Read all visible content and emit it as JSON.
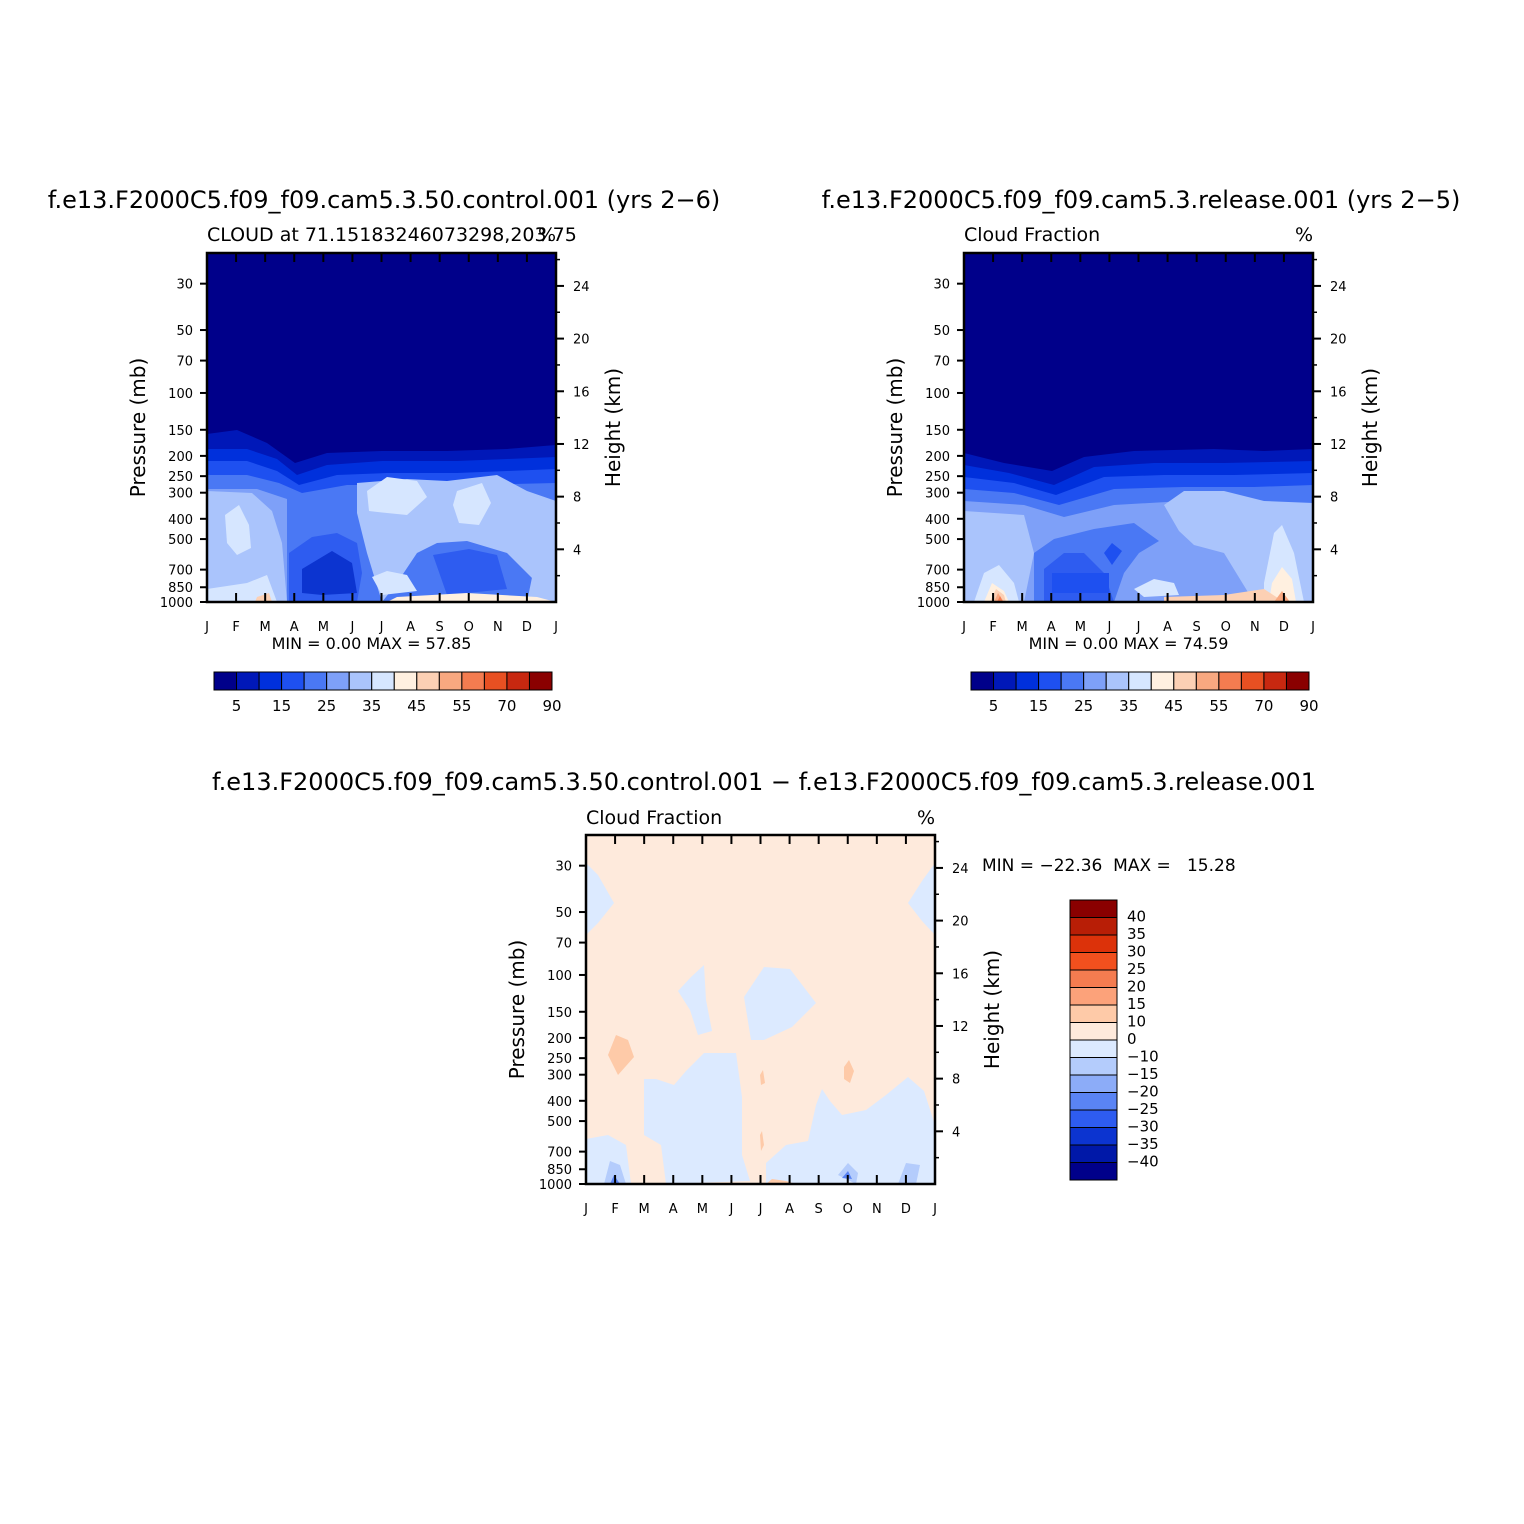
{
  "chart_data": [
    {
      "type": "heatmap",
      "case": "f.e13.F2000C5.f09_f09.cam5.3.50.control.001 (yrs 2−6)",
      "subtitle": "CLOUD at 71.15183246073298,203.75",
      "units": "%",
      "ylabel": "Pressure (mb)",
      "ylabel_right": "Height (km)",
      "x_ticks": [
        "J",
        "F",
        "M",
        "A",
        "M",
        "J",
        "J",
        "A",
        "S",
        "O",
        "N",
        "D",
        "J"
      ],
      "y_ticks": [
        "30",
        "50",
        "70",
        "100",
        "150",
        "200",
        "250",
        "300",
        "400",
        "500",
        "700",
        "850",
        "1000"
      ],
      "y_ticks_right": [
        "24",
        "20",
        "16",
        "12",
        "8",
        "4"
      ],
      "stats": "MIN =    0.00  MAX =   57.85",
      "colorbar_labels": [
        "5",
        "15",
        "25",
        "35",
        "45",
        "55",
        "70",
        "90"
      ]
    },
    {
      "type": "heatmap",
      "case": "f.e13.F2000C5.f09_f09.cam5.3.release.001 (yrs 2−5)",
      "subtitle": "Cloud Fraction",
      "units": "%",
      "ylabel": "Pressure (mb)",
      "ylabel_right": "Height (km)",
      "x_ticks": [
        "J",
        "F",
        "M",
        "A",
        "M",
        "J",
        "J",
        "A",
        "S",
        "O",
        "N",
        "D",
        "J"
      ],
      "y_ticks": [
        "30",
        "50",
        "70",
        "100",
        "150",
        "200",
        "250",
        "300",
        "400",
        "500",
        "700",
        "850",
        "1000"
      ],
      "y_ticks_right": [
        "24",
        "20",
        "16",
        "12",
        "8",
        "4"
      ],
      "stats": "MIN =    0.00  MAX =   74.59",
      "colorbar_labels": [
        "5",
        "15",
        "25",
        "35",
        "45",
        "55",
        "70",
        "90"
      ]
    },
    {
      "type": "heatmap",
      "case": "f.e13.F2000C5.f09_f09.cam5.3.50.control.001 − f.e13.F2000C5.f09_f09.cam5.3.release.001",
      "subtitle": "Cloud Fraction",
      "units": "%",
      "ylabel": "Pressure (mb)",
      "ylabel_right": "Height (km)",
      "x_ticks": [
        "J",
        "F",
        "M",
        "A",
        "M",
        "J",
        "J",
        "A",
        "S",
        "O",
        "N",
        "D",
        "J"
      ],
      "y_ticks": [
        "30",
        "50",
        "70",
        "100",
        "150",
        "200",
        "250",
        "300",
        "400",
        "500",
        "700",
        "850",
        "1000"
      ],
      "y_ticks_right": [
        "24",
        "20",
        "16",
        "12",
        "8",
        "4"
      ],
      "stats": "MIN = −22.36  MAX =   15.28",
      "colorbar_labels": [
        "40",
        "35",
        "30",
        "25",
        "20",
        "15",
        "10",
        "0",
        "−10",
        "−15",
        "−20",
        "−25",
        "−30",
        "−35",
        "−40"
      ]
    }
  ],
  "colors": {
    "abs_scale": [
      "#00008a",
      "#0018b8",
      "#0030dc",
      "#1e50f0",
      "#4a78f4",
      "#7ea0f8",
      "#aac4fc",
      "#d6e6ff",
      "#fff0e0",
      "#fcd0b4",
      "#f8a880",
      "#f47c50",
      "#e85022",
      "#c82810",
      "#8a0000"
    ],
    "diff_scale": [
      "#8a0000",
      "#b81e06",
      "#dc320a",
      "#f2501e",
      "#f47c50",
      "#fca27a",
      "#fecaa8",
      "#feeadc",
      "#dceaff",
      "#b4ccfc",
      "#8cacf8",
      "#5a84f4",
      "#2e5cf0",
      "#0c34d0",
      "#0018a8",
      "#00008a"
    ]
  }
}
